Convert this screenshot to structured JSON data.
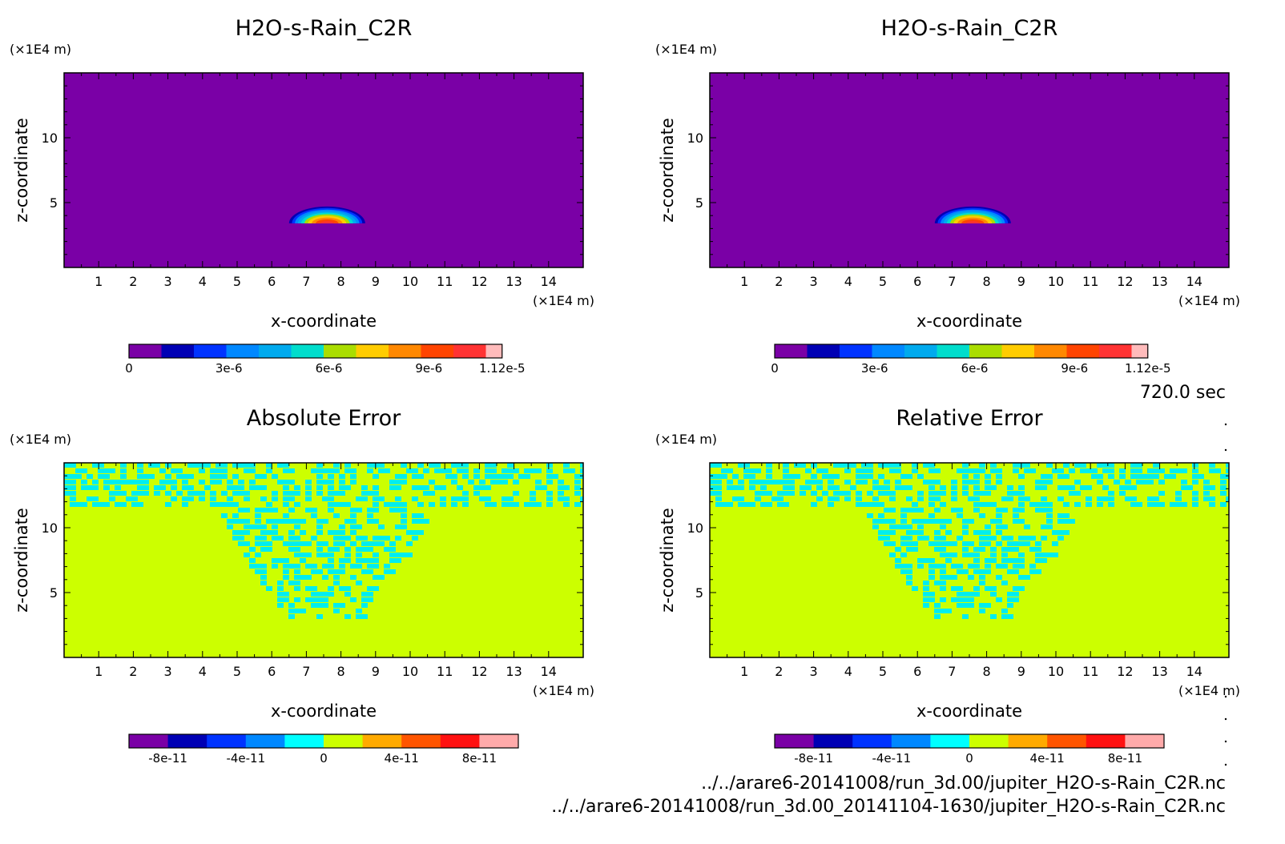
{
  "chart_data": [
    {
      "type": "heatmap",
      "title": "H2O-s-Rain_C2R",
      "xlabel": "x-coordinate",
      "ylabel": "z-coordinate",
      "x_unit": "(×1E4 m)",
      "y_unit": "(×1E4 m)",
      "xlim": [
        0,
        15
      ],
      "ylim": [
        0,
        15
      ],
      "xticks": [
        "1",
        "2",
        "3",
        "4",
        "5",
        "6",
        "7",
        "8",
        "9",
        "10",
        "11",
        "12",
        "13",
        "14"
      ],
      "yticks": [
        "5",
        "10"
      ],
      "field": "plume",
      "colorbar": {
        "min": 0,
        "max": 1.12e-05,
        "labels": [
          "0",
          "3e-6",
          "6e-6",
          "9e-6",
          "1.12e-5"
        ],
        "label_values": [
          0,
          3e-06,
          6e-06,
          9e-06,
          1.12e-05
        ],
        "colors": [
          "#7a00a6",
          "#0000b4",
          "#0033ff",
          "#0088ff",
          "#00aaee",
          "#00ddcc",
          "#aadd00",
          "#ffcc00",
          "#ff8800",
          "#ff4400",
          "#ff3333",
          "#ffbbbb"
        ]
      },
      "feature": {
        "center_x": 7.6,
        "base_z": 3.4,
        "half_width": 1.1,
        "top_z": 4.7,
        "max_value": 1.12e-05
      }
    },
    {
      "type": "heatmap",
      "title": "H2O-s-Rain_C2R",
      "xlabel": "x-coordinate",
      "ylabel": "z-coordinate",
      "x_unit": "(×1E4 m)",
      "y_unit": "(×1E4 m)",
      "xlim": [
        0,
        15
      ],
      "ylim": [
        0,
        15
      ],
      "xticks": [
        "1",
        "2",
        "3",
        "4",
        "5",
        "6",
        "7",
        "8",
        "9",
        "10",
        "11",
        "12",
        "13",
        "14"
      ],
      "yticks": [
        "5",
        "10"
      ],
      "field": "plume",
      "colorbar": {
        "min": 0,
        "max": 1.12e-05,
        "labels": [
          "0",
          "3e-6",
          "6e-6",
          "9e-6",
          "1.12e-5"
        ],
        "label_values": [
          0,
          3e-06,
          6e-06,
          9e-06,
          1.12e-05
        ],
        "colors": [
          "#7a00a6",
          "#0000b4",
          "#0033ff",
          "#0088ff",
          "#00aaee",
          "#00ddcc",
          "#aadd00",
          "#ffcc00",
          "#ff8800",
          "#ff4400",
          "#ff3333",
          "#ffbbbb"
        ]
      },
      "feature": {
        "center_x": 7.6,
        "base_z": 3.4,
        "half_width": 1.1,
        "top_z": 4.7,
        "max_value": 1.12e-05
      }
    },
    {
      "type": "heatmap",
      "title": "Absolute Error",
      "xlabel": "x-coordinate",
      "ylabel": "z-coordinate",
      "x_unit": "(×1E4 m)",
      "y_unit": "(×1E4 m)",
      "xlim": [
        0,
        15
      ],
      "ylim": [
        0,
        15
      ],
      "xticks": [
        "1",
        "2",
        "3",
        "4",
        "5",
        "6",
        "7",
        "8",
        "9",
        "10",
        "11",
        "12",
        "13",
        "14"
      ],
      "yticks": [
        "5",
        "10"
      ],
      "field": "noise",
      "background_color": "#ccff00",
      "noise_color": "#00eeee",
      "colorbar": {
        "min": -1e-10,
        "max": 1e-10,
        "labels": [
          "-8e-11",
          "-4e-11",
          "0",
          "4e-11",
          "8e-11"
        ],
        "label_values": [
          -8e-11,
          -4e-11,
          0,
          4e-11,
          8e-11
        ],
        "colors": [
          "#7a00a6",
          "#0000b4",
          "#0033ff",
          "#0088ff",
          "#00ffff",
          "#ccff00",
          "#ffaa00",
          "#ff5500",
          "#ff1111",
          "#ffaaaa"
        ]
      },
      "feature": {
        "top_band_z": 11.7,
        "funnel_top_left": 4.4,
        "funnel_top_right": 10.8,
        "funnel_bottom_z": 3.0,
        "funnel_bottom_width": 2.0,
        "center_x": 7.6
      }
    },
    {
      "type": "heatmap",
      "title": "Relative Error",
      "xlabel": "x-coordinate",
      "ylabel": "z-coordinate",
      "x_unit": "(×1E4 m)",
      "y_unit": "(×1E4 m)",
      "xlim": [
        0,
        15
      ],
      "ylim": [
        0,
        15
      ],
      "xticks": [
        "1",
        "2",
        "3",
        "4",
        "5",
        "6",
        "7",
        "8",
        "9",
        "10",
        "11",
        "12",
        "13",
        "14"
      ],
      "yticks": [
        "5",
        "10"
      ],
      "field": "noise",
      "background_color": "#ccff00",
      "noise_color": "#00eeee",
      "colorbar": {
        "min": -1e-10,
        "max": 1e-10,
        "labels": [
          "-8e-11",
          "-4e-11",
          "0",
          "4e-11",
          "8e-11"
        ],
        "label_values": [
          -8e-11,
          -4e-11,
          0,
          4e-11,
          8e-11
        ],
        "colors": [
          "#7a00a6",
          "#0000b4",
          "#0033ff",
          "#0088ff",
          "#00ffff",
          "#ccff00",
          "#ffaa00",
          "#ff5500",
          "#ff1111",
          "#ffaaaa"
        ]
      },
      "feature": {
        "top_band_z": 11.7,
        "funnel_top_left": 4.4,
        "funnel_top_right": 10.8,
        "funnel_bottom_z": 3.0,
        "funnel_bottom_width": 2.0,
        "center_x": 7.6
      }
    }
  ],
  "time_label": "720.0 sec",
  "file_paths": [
    "../../arare6-20141008/run_3d.00/jupiter_H2O-s-Rain_C2R.nc",
    "../../arare6-20141008/run_3d.00_20141104-1630/jupiter_H2O-s-Rain_C2R.nc"
  ]
}
